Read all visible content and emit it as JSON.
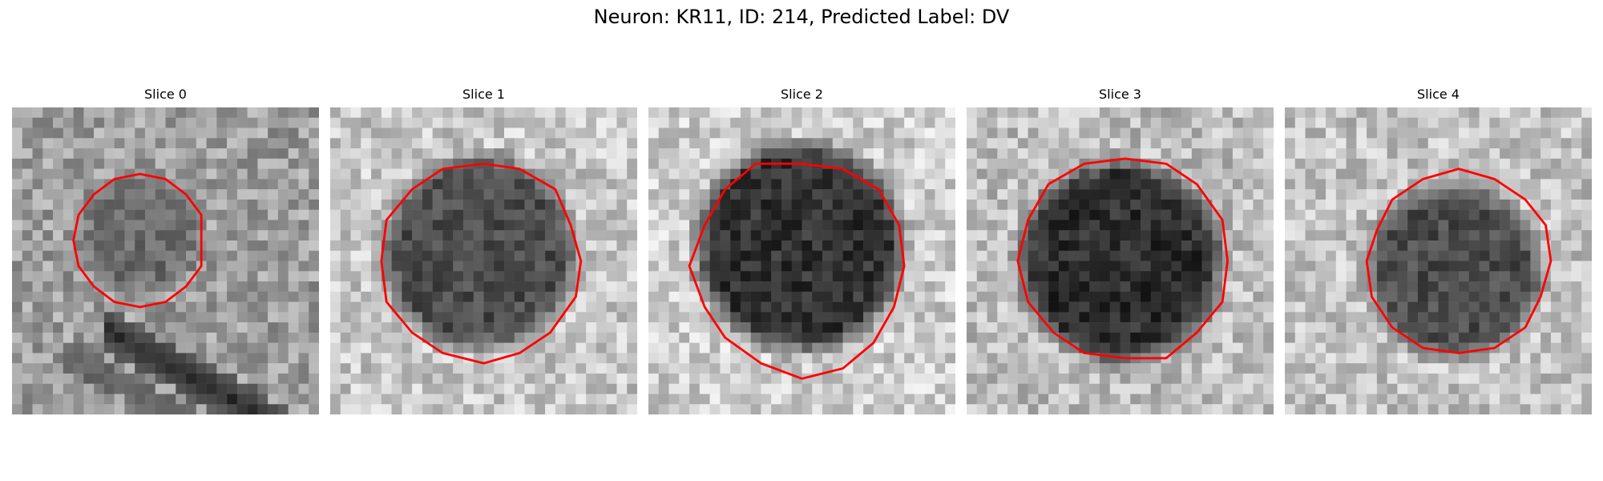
{
  "figure": {
    "title": "Neuron: KR11, ID: 214, Predicted Label: DV"
  },
  "colors": {
    "contour": "#ff0000",
    "background": "#ffffff"
  },
  "panels": [
    {
      "title": "Slice 0"
    },
    {
      "title": "Slice 1"
    },
    {
      "title": "Slice 2"
    },
    {
      "title": "Slice 3"
    },
    {
      "title": "Slice 4"
    }
  ]
}
